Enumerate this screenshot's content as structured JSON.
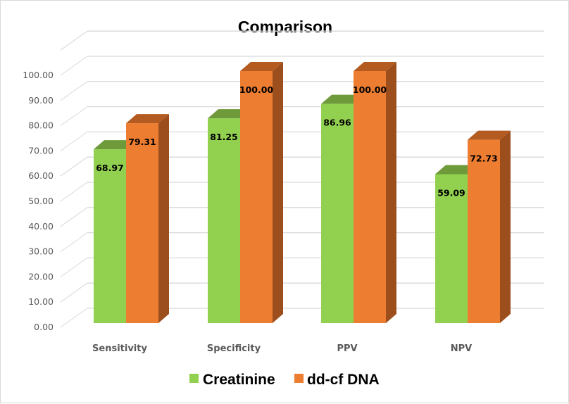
{
  "chart_data": {
    "type": "bar",
    "variant": "3d-clustered-column",
    "title": "Comparison",
    "xlabel": "",
    "ylabel": "",
    "categories": [
      "Sensitivity",
      "Specificity",
      "PPV",
      "NPV"
    ],
    "series": [
      {
        "name": "Creatinine",
        "values": [
          68.97,
          81.25,
          86.96,
          59.09
        ],
        "labels": [
          "68.97",
          "81.25",
          "86.96",
          "59.09"
        ],
        "color": "#92d050",
        "top_color": "#6f9a3a"
      },
      {
        "name": "dd-cf DNA",
        "values": [
          79.31,
          100.0,
          100.0,
          72.73
        ],
        "labels": [
          "79.31",
          "100.00",
          "100.00",
          "72.73"
        ],
        "color": "#ed7d31",
        "top_color": "#b35b20",
        "side_color": "#9c4f1c"
      }
    ],
    "ylim": [
      0,
      110
    ],
    "yticks": [
      0,
      10,
      20,
      30,
      40,
      50,
      60,
      70,
      80,
      90,
      100
    ],
    "ytick_labels": [
      "0.00",
      "10.00",
      "20.00",
      "30.00",
      "40.00",
      "50.00",
      "60.00",
      "70.00",
      "80.00",
      "90.00",
      "100.00"
    ],
    "grid": true,
    "legend": {
      "position": "bottom",
      "entries": [
        "Creatinine",
        "dd-cf DNA"
      ]
    },
    "data_labels": true
  }
}
